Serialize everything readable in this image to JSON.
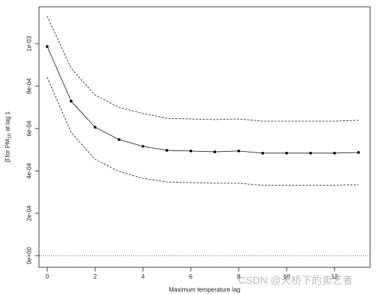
{
  "chart_data": {
    "type": "line",
    "xlabel": "Maximum temperature lag",
    "ylabel_main": "β̂ for PM",
    "ylabel_sub": "10",
    "ylabel_end": "at lag 1",
    "x": [
      0,
      1,
      2,
      3,
      4,
      5,
      6,
      7,
      8,
      9,
      10,
      11,
      12,
      13
    ],
    "series": [
      {
        "color": "#000000",
        "style": "solid",
        "markers": true,
        "values": [
          0.000987,
          0.000729,
          0.000606,
          0.000548,
          0.000516,
          0.000497,
          0.000494,
          0.00049,
          0.000494,
          0.000484,
          0.000484,
          0.000484,
          0.000484,
          0.000487
        ]
      },
      {
        "color": "#000000",
        "style": "dashed",
        "markers": false,
        "values": [
          0.00113,
          0.000884,
          0.000758,
          0.0007,
          0.000671,
          0.000648,
          0.000645,
          0.000642,
          0.000645,
          0.000635,
          0.000635,
          0.000635,
          0.000635,
          0.000639
        ]
      },
      {
        "color": "#000000",
        "style": "dashed",
        "markers": false,
        "values": [
          0.000842,
          0.000581,
          0.000455,
          0.000397,
          0.000365,
          0.000348,
          0.000345,
          0.000342,
          0.000342,
          0.000332,
          0.000332,
          0.000332,
          0.000332,
          0.000335
        ]
      }
    ],
    "reference_line": 0,
    "xlim": [
      -0.343,
      13.486
    ],
    "ylim": [
      -5.48e-05,
      0.001174
    ],
    "xticks": [
      0,
      2,
      4,
      6,
      8,
      10,
      12
    ],
    "yticks": [
      {
        "value": 0,
        "label": "0e+00"
      },
      {
        "value": 0.0002,
        "label": "2e-04"
      },
      {
        "value": 0.0004,
        "label": "4e-04"
      },
      {
        "value": 0.0006,
        "label": "6e-04"
      },
      {
        "value": 0.0008,
        "label": "8e-04"
      },
      {
        "value": 0.001,
        "label": "1e-03"
      }
    ],
    "watermark": "CSDN @天桥下的卖艺者"
  }
}
